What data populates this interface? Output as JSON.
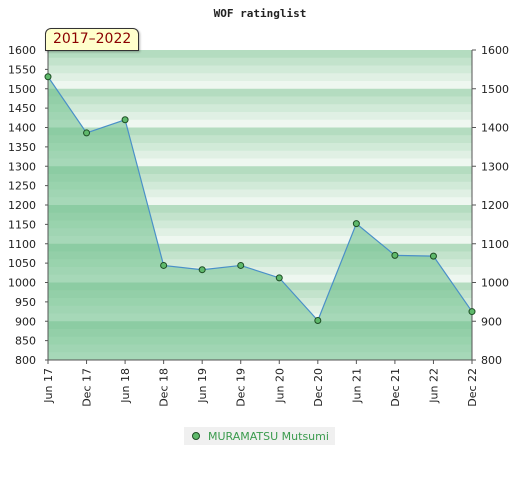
{
  "chart_data": {
    "type": "area",
    "title": "WOF ratinglist",
    "period_label": "2017–2022",
    "xlabel": "",
    "ylabel": "",
    "ylim": [
      800,
      1600
    ],
    "yticks": [
      800,
      850,
      900,
      950,
      1000,
      1050,
      1100,
      1150,
      1200,
      1250,
      1300,
      1350,
      1400,
      1450,
      1500,
      1550,
      1600
    ],
    "yticks_right": [
      800,
      900,
      1000,
      1100,
      1200,
      1300,
      1400,
      1500,
      1600
    ],
    "categories": [
      "Jun 17",
      "Dec 17",
      "Jun 18",
      "Dec 18",
      "Jun 19",
      "Dec 19",
      "Jun 20",
      "Dec 20",
      "Jun 21",
      "Dec 21",
      "Jun 22",
      "Dec 22"
    ],
    "series": [
      {
        "name": "MURAMATSU Mutsumi",
        "values": [
          1531,
          1386,
          1420,
          1044,
          1033,
          1044,
          1012,
          902,
          1152,
          1070,
          1068,
          925
        ]
      }
    ],
    "legend_position": "bottom-center",
    "grid": true,
    "colors": {
      "area_fill": "#6cc08a",
      "line": "#4a90c8",
      "marker_fill": "#5fb96b",
      "marker_stroke": "#1d4d24",
      "band_dark": "#b4dcc0",
      "band_light": "#eef7f0",
      "legend_text": "#3a9b4d"
    }
  }
}
